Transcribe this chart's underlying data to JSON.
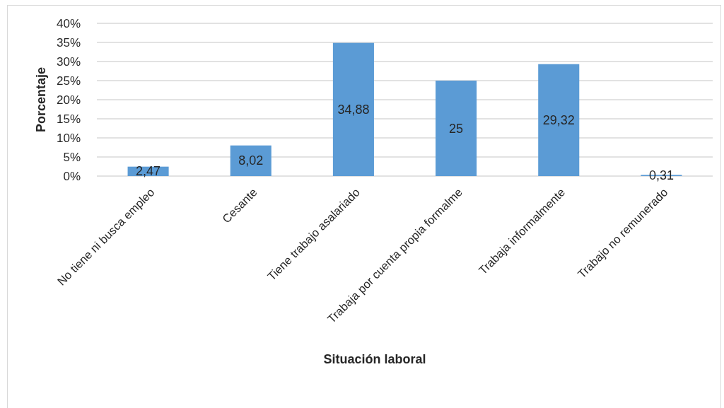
{
  "chart_data": {
    "type": "bar",
    "xlabel": "Situación laboral",
    "ylabel": "Porcentaje",
    "categories": [
      "No tiene ni busca empleo",
      "Cesante",
      "Tiene trabajo asalariado",
      "Trabaja por cuenta propia formalme",
      "Trabaja informalmente",
      "Trabajo no remunerado"
    ],
    "values": [
      2.47,
      8.02,
      34.88,
      25,
      29.32,
      0.31
    ],
    "value_labels": [
      "2,47",
      "8,02",
      "34,88",
      "25",
      "29,32",
      "0,31"
    ],
    "color": "#5b9bd5",
    "ylim": [
      0,
      40
    ],
    "yticks": [
      {
        "value": 0,
        "label": "0%"
      },
      {
        "value": 5,
        "label": "5%"
      },
      {
        "value": 10,
        "label": "10%"
      },
      {
        "value": 15,
        "label": "15%"
      },
      {
        "value": 20,
        "label": "20%"
      },
      {
        "value": 25,
        "label": "25%"
      },
      {
        "value": 30,
        "label": "30%"
      },
      {
        "value": 35,
        "label": "35%"
      },
      {
        "value": 40,
        "label": "40%"
      }
    ],
    "grid": "y"
  }
}
